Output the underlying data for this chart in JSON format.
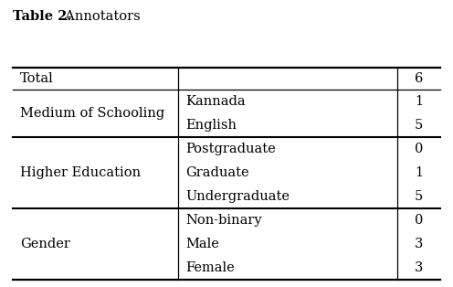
{
  "sections": [
    {
      "category": "Gender",
      "rows": [
        [
          "Female",
          "3"
        ],
        [
          "Male",
          "3"
        ],
        [
          "Non-binary",
          "0"
        ]
      ]
    },
    {
      "category": "Higher Education",
      "rows": [
        [
          "Undergraduate",
          "5"
        ],
        [
          "Graduate",
          "1"
        ],
        [
          "Postgraduate",
          "0"
        ]
      ]
    },
    {
      "category": "Medium of Schooling",
      "rows": [
        [
          "English",
          "5"
        ],
        [
          "Kannada",
          "1"
        ]
      ]
    }
  ],
  "total_label": "Total",
  "total_value": "6",
  "background_color": "#ffffff",
  "text_color": "#000000",
  "font_size": 10.5,
  "caption_bold": "Table 2.",
  "caption_normal": "  Annotators",
  "caption_font_size": 10.5
}
